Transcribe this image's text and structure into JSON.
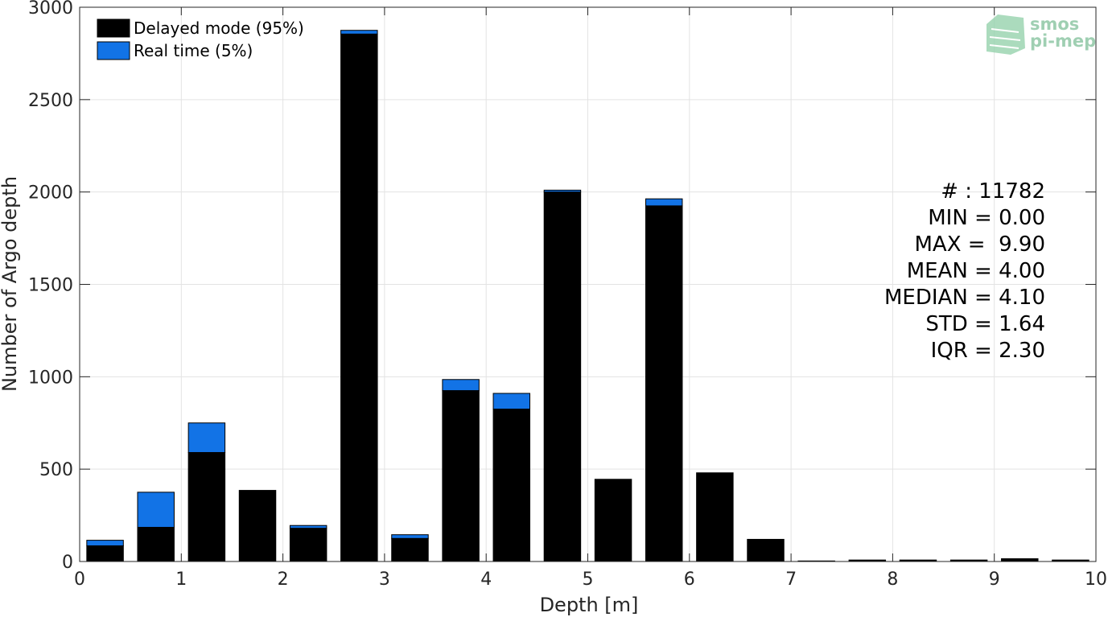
{
  "chart_data": {
    "type": "bar",
    "stacked": true,
    "xlabel": "Depth [m]",
    "ylabel": "Number of Argo depth",
    "xlim": [
      0,
      10
    ],
    "ylim": [
      0,
      3000
    ],
    "xticks": [
      "0",
      "1",
      "2",
      "3",
      "4",
      "5",
      "6",
      "7",
      "8",
      "9",
      "10"
    ],
    "yticks": [
      "0",
      "500",
      "1000",
      "1500",
      "2000",
      "2500",
      "3000"
    ],
    "grid": true,
    "legend_position": "top-left",
    "bin_width": 0.5,
    "bin_centers": [
      0.25,
      0.75,
      1.25,
      1.75,
      2.25,
      2.75,
      3.25,
      3.75,
      4.25,
      4.75,
      5.25,
      5.75,
      6.25,
      6.75,
      7.25,
      7.75,
      8.25,
      8.75,
      9.25,
      9.75
    ],
    "series": [
      {
        "name": "Delayed mode (95%)",
        "color": "#000000",
        "values": [
          85,
          185,
          590,
          385,
          180,
          2855,
          125,
          925,
          825,
          2000,
          445,
          1925,
          480,
          120,
          3,
          8,
          8,
          8,
          15,
          8
        ]
      },
      {
        "name": "Real time (5%)",
        "color": "#1273e6",
        "values": [
          30,
          190,
          160,
          0,
          15,
          20,
          20,
          60,
          85,
          10,
          0,
          38,
          0,
          0,
          0,
          0,
          0,
          0,
          0,
          0
        ]
      }
    ],
    "stats": [
      "# : 11782",
      "MIN = 0.00",
      "MAX =  9.90",
      "MEAN = 4.00",
      "MEDIAN = 4.10",
      "STD = 1.64",
      "IQR = 2.30"
    ]
  },
  "logo": {
    "line1": "smos",
    "line2": "pi-mep",
    "color": "#7fbf99"
  }
}
